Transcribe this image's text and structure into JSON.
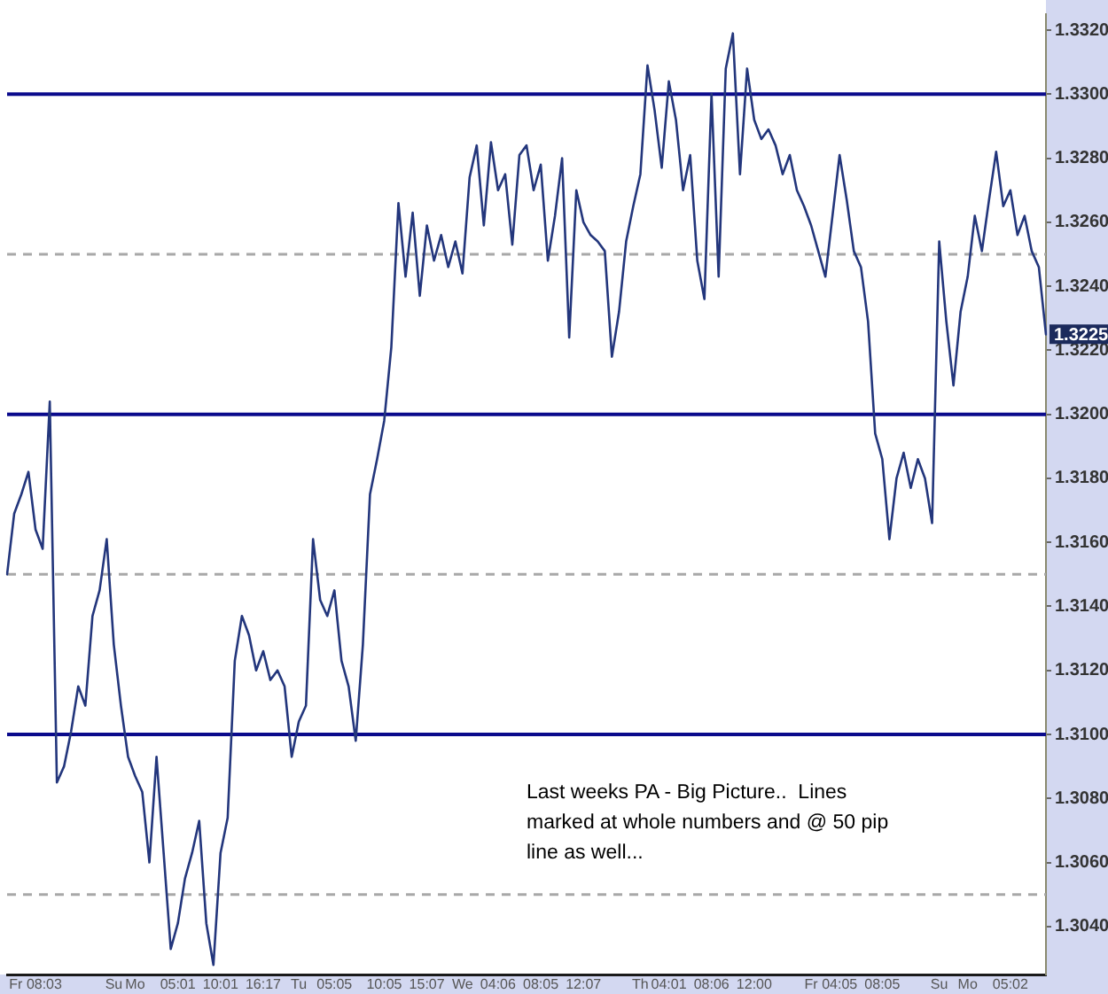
{
  "chart_data": {
    "type": "line",
    "categories": [
      null,
      null,
      null,
      null,
      "Fr 08:03",
      null,
      null,
      null,
      null,
      null,
      null,
      null,
      null,
      null,
      null,
      "Su",
      null,
      null,
      "Mo",
      null,
      null,
      null,
      null,
      null,
      "05:01",
      null,
      null,
      null,
      null,
      null,
      "10:01",
      null,
      null,
      null,
      null,
      null,
      "16:17",
      null,
      null,
      null,
      null,
      "Tu",
      null,
      null,
      null,
      null,
      "05:05",
      null,
      null,
      null,
      null,
      null,
      null,
      "10:05",
      null,
      null,
      null,
      null,
      null,
      "15:07",
      null,
      null,
      null,
      null,
      "We",
      null,
      null,
      null,
      null,
      "04:06",
      null,
      null,
      null,
      null,
      null,
      "08:05",
      null,
      null,
      null,
      null,
      null,
      "12:07",
      null,
      null,
      null,
      null,
      null,
      null,
      null,
      "Th",
      null,
      null,
      null,
      "04:01",
      null,
      null,
      null,
      null,
      null,
      "08:06",
      null,
      null,
      null,
      null,
      null,
      "12:00",
      null,
      null,
      null,
      null,
      null,
      null,
      null,
      "Fr",
      null,
      null,
      null,
      "04:05",
      null,
      null,
      null,
      null,
      null,
      "08:05",
      null,
      null,
      null,
      null,
      null,
      null,
      null,
      "Su",
      null,
      null,
      null,
      "Mo",
      null,
      null,
      null,
      null,
      null,
      "05:02",
      null,
      null,
      null,
      null,
      null
    ],
    "values": [
      1.315,
      1.3169,
      1.3175,
      1.3182,
      1.3164,
      1.3158,
      1.3204,
      1.3085,
      1.309,
      1.3101,
      1.3115,
      1.3109,
      1.3137,
      1.3145,
      1.3161,
      1.3128,
      1.3109,
      1.3093,
      1.3087,
      1.3082,
      1.306,
      1.3093,
      1.3063,
      1.3033,
      1.3041,
      1.3055,
      1.3063,
      1.3073,
      1.3041,
      1.3028,
      1.3063,
      1.3074,
      1.3123,
      1.3137,
      1.3131,
      1.312,
      1.3126,
      1.3117,
      1.312,
      1.3115,
      1.3093,
      1.3104,
      1.3109,
      1.3161,
      1.3142,
      1.3137,
      1.3145,
      1.3123,
      1.3115,
      1.3098,
      1.3128,
      1.3175,
      1.3186,
      1.3198,
      1.3221,
      1.3266,
      1.3243,
      1.3263,
      1.3237,
      1.3259,
      1.3248,
      1.3256,
      1.3246,
      1.3254,
      1.3244,
      1.3274,
      1.3284,
      1.3259,
      1.3285,
      1.327,
      1.3275,
      1.3253,
      1.3281,
      1.3284,
      1.327,
      1.3278,
      1.3248,
      1.3262,
      1.328,
      1.3224,
      1.327,
      1.326,
      1.3256,
      1.3254,
      1.3251,
      1.3218,
      1.3232,
      1.3254,
      1.3265,
      1.3275,
      1.3309,
      1.3295,
      1.3277,
      1.3304,
      1.3292,
      1.327,
      1.3281,
      1.3248,
      1.3236,
      1.33,
      1.3243,
      1.3308,
      1.3319,
      1.3275,
      1.3308,
      1.3292,
      1.3286,
      1.3289,
      1.3284,
      1.3275,
      1.3281,
      1.327,
      1.3265,
      1.3259,
      1.3251,
      1.3243,
      1.3262,
      1.3281,
      1.3267,
      1.3251,
      1.3246,
      1.3229,
      1.3194,
      1.3186,
      1.3161,
      1.318,
      1.3188,
      1.3177,
      1.3186,
      1.318,
      1.3166,
      1.3254,
      1.3229,
      1.3209,
      1.3232,
      1.3243,
      1.3262,
      1.3251,
      1.3267,
      1.3282,
      1.3265,
      1.327,
      1.3256,
      1.3262,
      1.3251,
      1.3246,
      1.3225
    ],
    "color": "#23367c",
    "line_style": "solid",
    "ylim": [
      1.3025,
      1.3325
    ],
    "yticks": [
      {
        "value": 1.304,
        "label": "1.3040"
      },
      {
        "value": 1.306,
        "label": "1.3060"
      },
      {
        "value": 1.308,
        "label": "1.3080"
      },
      {
        "value": 1.31,
        "label": "1.3100"
      },
      {
        "value": 1.312,
        "label": "1.3120"
      },
      {
        "value": 1.314,
        "label": "1.3140"
      },
      {
        "value": 1.316,
        "label": "1.3160"
      },
      {
        "value": 1.318,
        "label": "1.3180"
      },
      {
        "value": 1.32,
        "label": "1.3200"
      },
      {
        "value": 1.322,
        "label": "1.3220"
      },
      {
        "value": 1.324,
        "label": "1.3240"
      },
      {
        "value": 1.326,
        "label": "1.3260"
      },
      {
        "value": 1.328,
        "label": "1.3280"
      },
      {
        "value": 1.33,
        "label": "1.3300"
      },
      {
        "value": 1.332,
        "label": "1.3320"
      }
    ],
    "ref_lines": [
      {
        "axis": "y",
        "value": 1.33,
        "color": "#0a0a8c",
        "line_style": "solid"
      },
      {
        "axis": "y",
        "value": 1.325,
        "color": "#a8a8a8",
        "line_style": "dashed"
      },
      {
        "axis": "y",
        "value": 1.32,
        "color": "#0a0a8c",
        "line_style": "solid"
      },
      {
        "axis": "y",
        "value": 1.315,
        "color": "#a8a8a8",
        "line_style": "dashed"
      },
      {
        "axis": "y",
        "value": 1.31,
        "color": "#0a0a8c",
        "line_style": "solid"
      },
      {
        "axis": "y",
        "value": 1.305,
        "color": "#a8a8a8",
        "line_style": "dashed"
      }
    ],
    "annotations": [
      "Last weeks PA - Big Picture..  Lines marked at whole numbers and @ 50 pip line as well...",
      {
        "text": "1.3225",
        "y": 1.3225
      }
    ]
  }
}
